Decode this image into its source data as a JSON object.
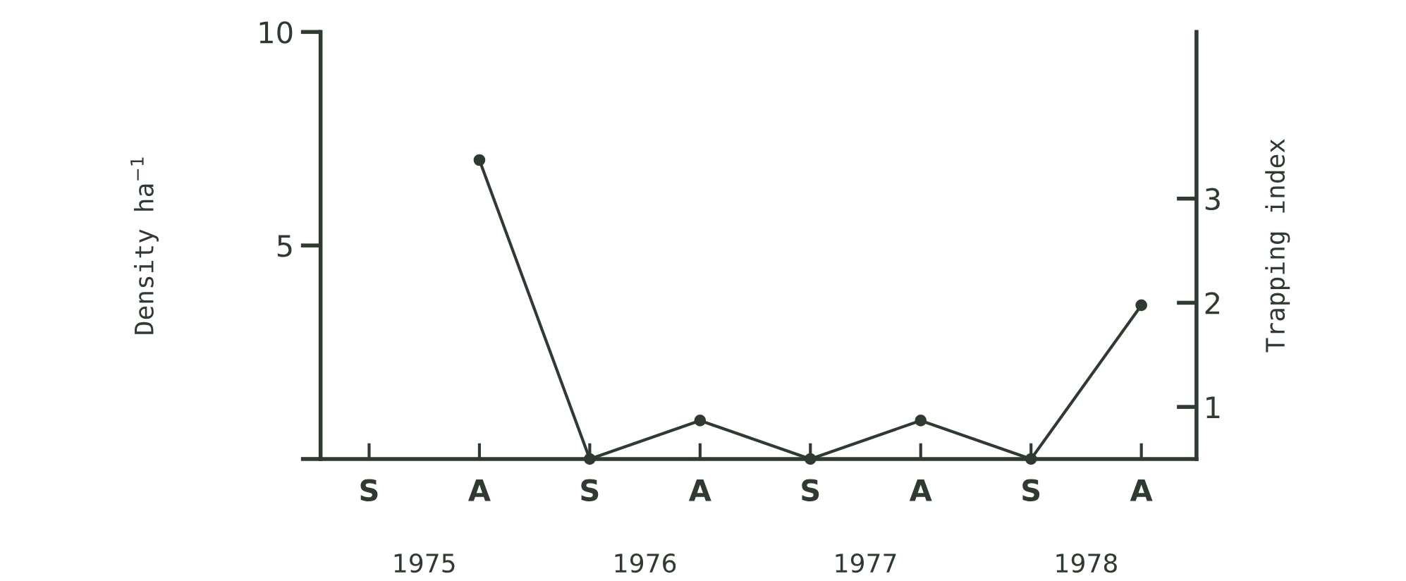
{
  "chart_data": {
    "type": "line",
    "ylabel": "Density ha$^{−1}$",
    "y2label": "Trapping index",
    "categories": [
      "S",
      "A",
      "S",
      "A",
      "S",
      "A",
      "S",
      "A"
    ],
    "series": [
      {
        "color": "#2f3a30",
        "values": [
          null,
          7.0,
          0,
          0.9,
          0,
          0.9,
          0,
          3.6
        ]
      }
    ],
    "ylim": [
      0,
      10
    ],
    "yticks": [
      {
        "value": 0,
        "label": null
      },
      5,
      10
    ],
    "y2lim": [
      0.5,
      4.6
    ],
    "y2ticks": [
      1,
      2,
      3
    ],
    "annotations": [
      "1975",
      "1976",
      "1977",
      "1978"
    ],
    "marker": "circle",
    "line_style": "solid",
    "grid": false,
    "legend": false
  }
}
